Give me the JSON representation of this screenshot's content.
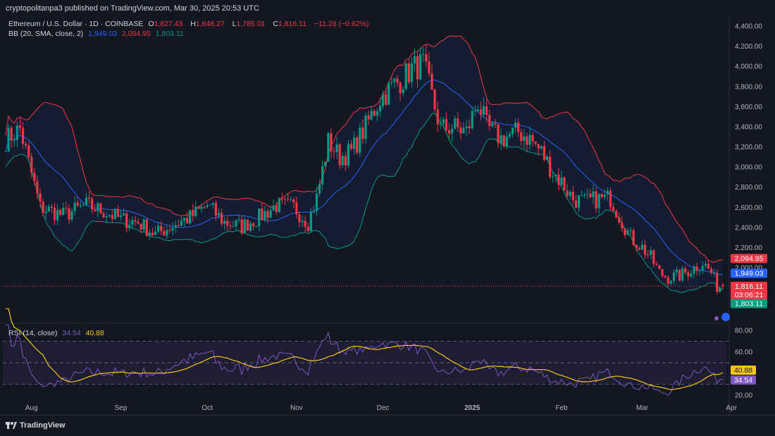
{
  "header": {
    "published": "cryptopolitanpa3 published on TradingView.com, Mar 30, 2025 20:53 UTC"
  },
  "legend": {
    "symbol": "Ethereum / U.S. Dollar · 1D · COINBASE",
    "o_label": "O",
    "o_val": "1,827.43",
    "h_label": "H",
    "h_val": "1,848.27",
    "l_label": "L",
    "l_val": "1,785.01",
    "c_label": "C",
    "c_val": "1,816.11",
    "change": "−11.28 (−0.62%)",
    "bb_label": "BB (20, SMA, close, 2)",
    "bb_basis": "1,949.03",
    "bb_upper": "2,094.95",
    "bb_lower": "1,803.11",
    "rsi_label": "RSI (14, close)",
    "rsi_val": "34.54",
    "rsi_ma": "40.88"
  },
  "price_tags": {
    "upper": "2,094.95",
    "basis": "1,949.03",
    "close": "1,816.11",
    "countdown": "03:06:21",
    "lower": "1,803.11"
  },
  "rsi_tags": {
    "ma": "40.88",
    "rsi": "34.54"
  },
  "colors": {
    "background": "#131722",
    "up": "#089981",
    "down": "#f23645",
    "basis": "#2962ff",
    "upper_band": "#f23645",
    "lower_band": "#089981",
    "rsi": "#7e57c2",
    "rsi_ma": "#f5c518"
  },
  "footer": {
    "brand": "TradingView"
  },
  "chart_data": [
    {
      "type": "candlestick",
      "title": "Ethereum / U.S. Dollar · 1D · COINBASE",
      "ylim": [
        1700,
        4450
      ],
      "y_ticks": [
        "2,000.00",
        "2,200.00",
        "2,400.00",
        "2,600.00",
        "2,800.00",
        "3,000.00",
        "3,200.00",
        "3,400.00",
        "3,600.00",
        "3,800.00",
        "4,000.00",
        "4,200.00",
        "4,400.00"
      ],
      "x_ticks": [
        "Aug",
        "Sep",
        "Oct",
        "Nov",
        "Dec",
        "2025",
        "Feb",
        "Mar",
        "Apr"
      ],
      "x_tick_days": [
        9,
        40,
        70,
        101,
        131,
        162,
        193,
        221,
        252
      ],
      "days": 250,
      "close_series_anchors": [
        [
          0,
          3270
        ],
        [
          5,
          3380
        ],
        [
          12,
          2600
        ],
        [
          20,
          2520
        ],
        [
          28,
          2620
        ],
        [
          34,
          2560
        ],
        [
          40,
          2480
        ],
        [
          46,
          2450
        ],
        [
          52,
          2330
        ],
        [
          58,
          2420
        ],
        [
          64,
          2500
        ],
        [
          70,
          2620
        ],
        [
          76,
          2450
        ],
        [
          82,
          2410
        ],
        [
          88,
          2500
        ],
        [
          94,
          2620
        ],
        [
          100,
          2600
        ],
        [
          105,
          2450
        ],
        [
          108,
          2690
        ],
        [
          112,
          3250
        ],
        [
          116,
          3100
        ],
        [
          120,
          3150
        ],
        [
          125,
          3400
        ],
        [
          130,
          3680
        ],
        [
          135,
          3820
        ],
        [
          138,
          3880
        ],
        [
          141,
          3980
        ],
        [
          145,
          4020
        ],
        [
          148,
          3700
        ],
        [
          151,
          3380
        ],
        [
          155,
          3400
        ],
        [
          160,
          3350
        ],
        [
          164,
          3650
        ],
        [
          167,
          3400
        ],
        [
          172,
          3280
        ],
        [
          178,
          3350
        ],
        [
          182,
          3280
        ],
        [
          186,
          3150
        ],
        [
          190,
          2950
        ],
        [
          193,
          2850
        ],
        [
          197,
          2680
        ],
        [
          201,
          2650
        ],
        [
          205,
          2680
        ],
        [
          210,
          2690
        ],
        [
          214,
          2460
        ],
        [
          217,
          2300
        ],
        [
          221,
          2200
        ],
        [
          224,
          2100
        ],
        [
          227,
          1950
        ],
        [
          230,
          1900
        ],
        [
          234,
          1920
        ],
        [
          238,
          1980
        ],
        [
          242,
          2050
        ],
        [
          245,
          1950
        ],
        [
          247,
          1816
        ]
      ],
      "bollinger": {
        "period": 20,
        "stddev": 2,
        "last_upper": 2094.95,
        "last_basis": 1949.03,
        "last_lower": 1803.11
      },
      "last": {
        "open": 1827.43,
        "high": 1848.27,
        "low": 1785.01,
        "close": 1816.11,
        "change": -11.28,
        "change_pct": -0.62
      }
    },
    {
      "type": "line",
      "title": "RSI (14, close)",
      "ylim": [
        15,
        85
      ],
      "y_ticks": [
        "20.00",
        "60.00",
        "80.00"
      ],
      "bands": [
        30,
        50,
        70
      ],
      "series": [
        {
          "name": "RSI (14, close)",
          "last": 34.54
        },
        {
          "name": "RSI-based MA",
          "last": 40.88
        }
      ]
    }
  ]
}
